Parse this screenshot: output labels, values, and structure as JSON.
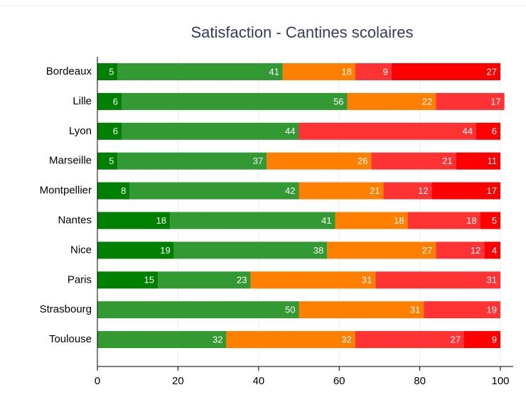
{
  "chart_data": {
    "type": "stacked-barh",
    "title": "Satisfaction - Cantines scolaires",
    "categories": [
      "Bordeaux",
      "Lille",
      "Lyon",
      "Marseille",
      "Montpellier",
      "Nantes",
      "Nice",
      "Paris",
      "Strasbourg",
      "Toulouse"
    ],
    "series": [
      {
        "color": "#008000",
        "values": [
          5,
          6,
          6,
          5,
          8,
          18,
          19,
          15,
          null,
          null
        ]
      },
      {
        "color": "#339933",
        "values": [
          41,
          56,
          44,
          37,
          42,
          41,
          38,
          23,
          50,
          32
        ]
      },
      {
        "color": "#ff8000",
        "values": [
          18,
          22,
          null,
          26,
          21,
          18,
          27,
          31,
          31,
          32
        ]
      },
      {
        "color": "#ff3333",
        "values": [
          9,
          17,
          44,
          21,
          12,
          18,
          12,
          31,
          19,
          27
        ]
      },
      {
        "color": "#ff0000",
        "values": [
          27,
          null,
          6,
          11,
          17,
          5,
          4,
          null,
          null,
          9
        ]
      }
    ],
    "xlim": [
      0,
      100
    ],
    "xticks": [
      0,
      20,
      40,
      60,
      80,
      100
    ],
    "grid": true
  }
}
